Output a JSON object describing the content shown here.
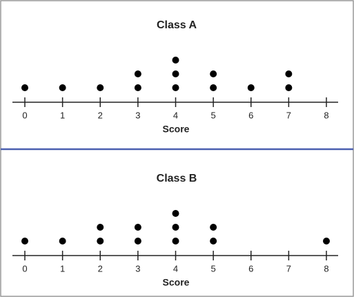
{
  "chart_data": [
    {
      "type": "dot",
      "title": "Class A",
      "x_label": "Score",
      "x": [
        0,
        1,
        2,
        3,
        4,
        5,
        6,
        7,
        8
      ],
      "values": [
        1,
        1,
        1,
        2,
        3,
        2,
        1,
        2,
        0
      ],
      "xlim": [
        0,
        8
      ],
      "xticks": [
        0,
        1,
        2,
        3,
        4,
        5,
        6,
        7,
        8
      ],
      "color": "#000000"
    },
    {
      "type": "dot",
      "title": "Class B",
      "x_label": "Score",
      "x": [
        0,
        1,
        2,
        3,
        4,
        5,
        6,
        7,
        8
      ],
      "values": [
        1,
        1,
        2,
        2,
        3,
        2,
        0,
        0,
        1
      ],
      "xlim": [
        0,
        8
      ],
      "xticks": [
        0,
        1,
        2,
        3,
        4,
        5,
        6,
        7,
        8
      ],
      "color": "#000000"
    }
  ]
}
